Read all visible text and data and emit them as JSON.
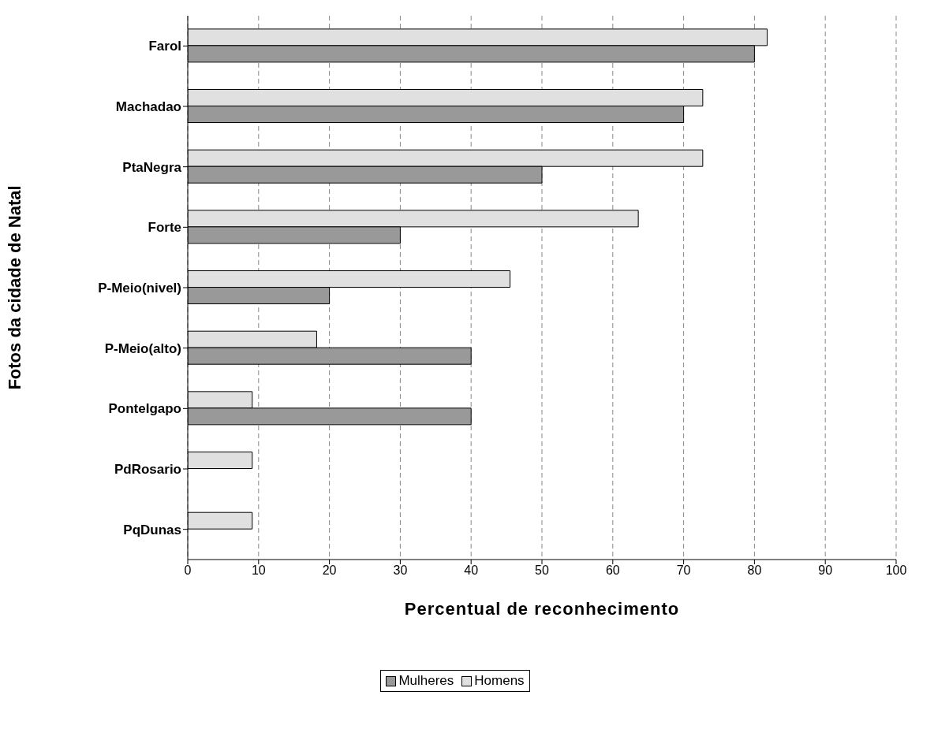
{
  "chart_data": {
    "type": "bar",
    "orientation": "horizontal",
    "xlabel": "Percentual de reconhecimento",
    "ylabel": "Fotos da cidade de Natal",
    "categories": [
      "Farol",
      "Machadao",
      "PtaNegra",
      "Forte",
      "P-Meio(nivel)",
      "P-Meio(alto)",
      "PonteIgapo",
      "PdRosario",
      "PqDunas"
    ],
    "series": [
      {
        "name": "Mulheres",
        "color": "#999999",
        "values": [
          80,
          70,
          50,
          30,
          20,
          40,
          40,
          0,
          0
        ]
      },
      {
        "name": "Homens",
        "color": "#e0e0e0",
        "values": [
          81.8,
          72.7,
          72.7,
          63.6,
          45.5,
          18.2,
          9.1,
          9.1,
          9.1
        ]
      }
    ],
    "xlim": [
      0,
      100
    ],
    "xticks": [
      0,
      10,
      20,
      30,
      40,
      50,
      60,
      70,
      80,
      90,
      100
    ],
    "grid": "x",
    "legend": "bottom"
  }
}
